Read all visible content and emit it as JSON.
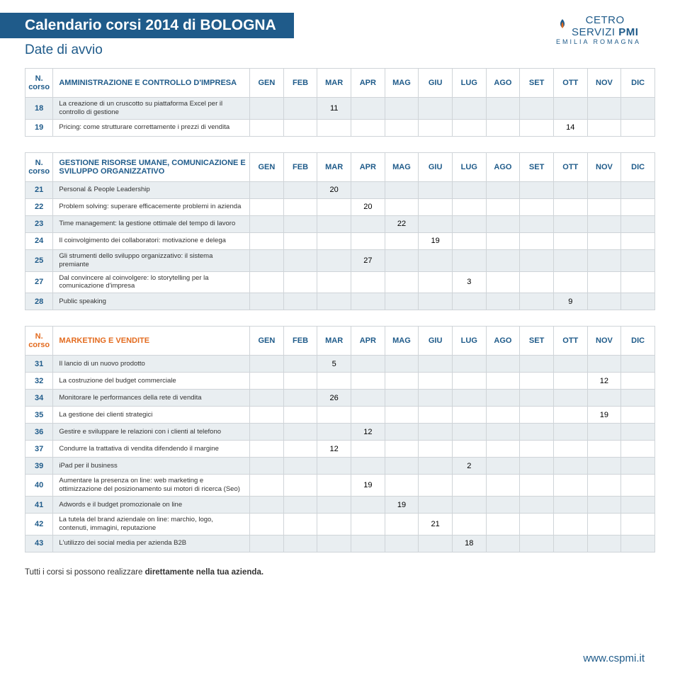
{
  "header": {
    "banner": "Calendario corsi 2014 di BOLOGNA",
    "subtitle": "Date di avvio"
  },
  "logo": {
    "line1a": "CE",
    "line1b": "TRO",
    "line2a": "SERVIZI ",
    "line2b": "PMI",
    "sub": "EMILIA ROMAGNA"
  },
  "months": [
    "GEN",
    "FEB",
    "MAR",
    "APR",
    "MAG",
    "GIU",
    "LUG",
    "AGO",
    "SET",
    "OTT",
    "NOV",
    "DIC"
  ],
  "n_corso": "N. corso",
  "sections": [
    {
      "title": "AMMINISTRAZIONE E CONTROLLO D'IMPRESA",
      "title_color": "#1f5b8a",
      "rows": [
        {
          "num": "18",
          "desc": "La creazione di un cruscotto su piattaforma Excel per il controllo di gestione",
          "cells": [
            "",
            "",
            "11",
            "",
            "",
            "",
            "",
            "",
            "",
            "",
            "",
            ""
          ],
          "alt": true
        },
        {
          "num": "19",
          "desc": "Pricing: come strutturare correttamente i prezzi di vendita",
          "cells": [
            "",
            "",
            "",
            "",
            "",
            "",
            "",
            "",
            "",
            "14",
            "",
            ""
          ],
          "alt": false
        }
      ]
    },
    {
      "title": "GESTIONE RISORSE UMANE, COMUNICAZIONE E SVILUPPO ORGANIZZATIVO",
      "title_color": "#1f5b8a",
      "rows": [
        {
          "num": "21",
          "desc": "Personal & People Leadership",
          "cells": [
            "",
            "",
            "20",
            "",
            "",
            "",
            "",
            "",
            "",
            "",
            "",
            ""
          ],
          "alt": true
        },
        {
          "num": "22",
          "desc": "Problem solving: superare efficacemente problemi in azienda",
          "cells": [
            "",
            "",
            "",
            "20",
            "",
            "",
            "",
            "",
            "",
            "",
            "",
            ""
          ],
          "alt": false
        },
        {
          "num": "23",
          "desc": "Time management: la gestione ottimale del tempo di lavoro",
          "cells": [
            "",
            "",
            "",
            "",
            "22",
            "",
            "",
            "",
            "",
            "",
            "",
            ""
          ],
          "alt": true
        },
        {
          "num": "24",
          "desc": "Il coinvolgimento dei collaboratori: motivazione e delega",
          "cells": [
            "",
            "",
            "",
            "",
            "",
            "19",
            "",
            "",
            "",
            "",
            "",
            ""
          ],
          "alt": false
        },
        {
          "num": "25",
          "desc": "Gli strumenti dello sviluppo organizzativo: il sistema premiante",
          "cells": [
            "",
            "",
            "",
            "27",
            "",
            "",
            "",
            "",
            "",
            "",
            "",
            ""
          ],
          "alt": true
        },
        {
          "num": "27",
          "desc": "Dal convincere al coinvolgere: lo storytelling per la comunicazione d'impresa",
          "cells": [
            "",
            "",
            "",
            "",
            "",
            "",
            "3",
            "",
            "",
            "",
            "",
            ""
          ],
          "alt": false
        },
        {
          "num": "28",
          "desc": "Public speaking",
          "cells": [
            "",
            "",
            "",
            "",
            "",
            "",
            "",
            "",
            "",
            "9",
            "",
            ""
          ],
          "alt": true
        }
      ]
    },
    {
      "title": "MARKETING E VENDITE",
      "title_color": "#e36b1f",
      "rows": [
        {
          "num": "31",
          "desc": "Il lancio di un nuovo prodotto",
          "cells": [
            "",
            "",
            "5",
            "",
            "",
            "",
            "",
            "",
            "",
            "",
            "",
            ""
          ],
          "alt": true
        },
        {
          "num": "32",
          "desc": "La costruzione del budget commerciale",
          "cells": [
            "",
            "",
            "",
            "",
            "",
            "",
            "",
            "",
            "",
            "",
            "12",
            ""
          ],
          "alt": false
        },
        {
          "num": "34",
          "desc": "Monitorare le performances della rete di vendita",
          "cells": [
            "",
            "",
            "26",
            "",
            "",
            "",
            "",
            "",
            "",
            "",
            "",
            ""
          ],
          "alt": true
        },
        {
          "num": "35",
          "desc": "La gestione dei clienti strategici",
          "cells": [
            "",
            "",
            "",
            "",
            "",
            "",
            "",
            "",
            "",
            "",
            "19",
            ""
          ],
          "alt": false
        },
        {
          "num": "36",
          "desc": "Gestire e sviluppare le relazioni con i clienti al telefono",
          "cells": [
            "",
            "",
            "",
            "12",
            "",
            "",
            "",
            "",
            "",
            "",
            "",
            ""
          ],
          "alt": true
        },
        {
          "num": "37",
          "desc": "Condurre la trattativa di vendita difendendo il margine",
          "cells": [
            "",
            "",
            "12",
            "",
            "",
            "",
            "",
            "",
            "",
            "",
            "",
            ""
          ],
          "alt": false
        },
        {
          "num": "39",
          "desc": "iPad per il business",
          "cells": [
            "",
            "",
            "",
            "",
            "",
            "",
            "2",
            "",
            "",
            "",
            "",
            ""
          ],
          "alt": true
        },
        {
          "num": "40",
          "desc": "Aumentare la presenza on line: web marketing e ottimizzazione del posizionamento sui motori di ricerca (Seo)",
          "cells": [
            "",
            "",
            "",
            "19",
            "",
            "",
            "",
            "",
            "",
            "",
            "",
            ""
          ],
          "alt": false
        },
        {
          "num": "41",
          "desc": "Adwords e il budget promozionale on line",
          "cells": [
            "",
            "",
            "",
            "",
            "19",
            "",
            "",
            "",
            "",
            "",
            "",
            ""
          ],
          "alt": true
        },
        {
          "num": "42",
          "desc": "La tutela del brand aziendale on line: marchio, logo, contenuti, immagini, reputazione",
          "cells": [
            "",
            "",
            "",
            "",
            "",
            "21",
            "",
            "",
            "",
            "",
            "",
            ""
          ],
          "alt": false
        },
        {
          "num": "43",
          "desc": "L'utilizzo dei social media per azienda B2B",
          "cells": [
            "",
            "",
            "",
            "",
            "",
            "",
            "18",
            "",
            "",
            "",
            "",
            ""
          ],
          "alt": true
        }
      ]
    }
  ],
  "footer_note_a": "Tutti i corsi si possono realizzare ",
  "footer_note_b": "direttamente nella tua azienda.",
  "site": "www.cspmi.it"
}
